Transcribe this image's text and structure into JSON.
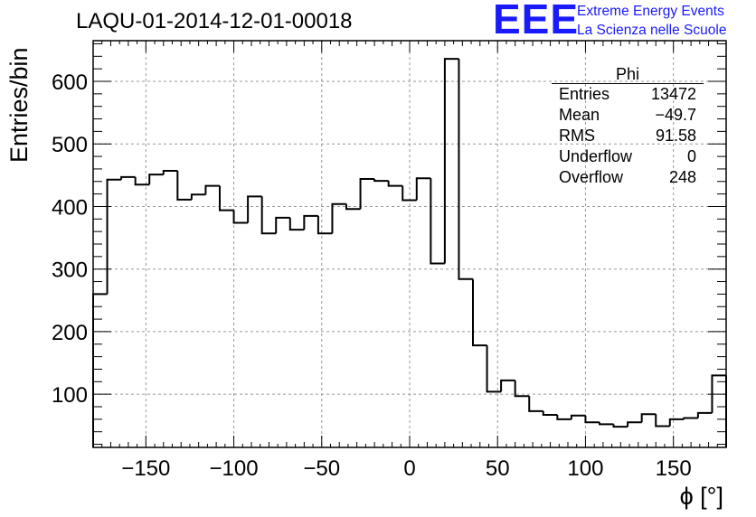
{
  "header": {
    "run_title": "LAQU-01-2014-12-01-00018",
    "logo_text": "EEE",
    "logo_line1": "Extreme Energy Events",
    "logo_line2": "La Scienza nelle Scuole",
    "logo_color": "#1a1aff"
  },
  "stats_box": {
    "title": "Phi",
    "rows": [
      {
        "label": "Entries",
        "value": "13472"
      },
      {
        "label": "Mean",
        "value": "−49.7"
      },
      {
        "label": "RMS",
        "value": "91.58"
      },
      {
        "label": "Underflow",
        "value": "0"
      },
      {
        "label": "Overflow",
        "value": "248"
      }
    ]
  },
  "chart_data": {
    "type": "bar",
    "style": "step-histogram",
    "title": "LAQU-01-2014-12-01-00018",
    "xlabel": "ϕ [°]",
    "ylabel": "Entries/bin",
    "xlim": [
      -180,
      180
    ],
    "ylim": [
      15,
      665
    ],
    "bin_width": 8,
    "xticks": [
      -150,
      -100,
      -50,
      0,
      50,
      100,
      150
    ],
    "xtick_labels": [
      "−150",
      "−100",
      "−50",
      "0",
      "50",
      "100",
      "150"
    ],
    "yticks": [
      100,
      200,
      300,
      400,
      500,
      600
    ],
    "ytick_labels": [
      "100",
      "200",
      "300",
      "400",
      "500",
      "600"
    ],
    "grid": true,
    "legend": "top-right stats box",
    "bins": [
      {
        "x": [
          -180,
          -172
        ],
        "y": 260
      },
      {
        "x": [
          -172,
          -164
        ],
        "y": 443
      },
      {
        "x": [
          -164,
          -156
        ],
        "y": 447
      },
      {
        "x": [
          -156,
          -148
        ],
        "y": 435
      },
      {
        "x": [
          -148,
          -140
        ],
        "y": 451
      },
      {
        "x": [
          -140,
          -132
        ],
        "y": 457
      },
      {
        "x": [
          -132,
          -124
        ],
        "y": 411
      },
      {
        "x": [
          -124,
          -116
        ],
        "y": 419
      },
      {
        "x": [
          -116,
          -108
        ],
        "y": 433
      },
      {
        "x": [
          -108,
          -100
        ],
        "y": 394
      },
      {
        "x": [
          -100,
          -92
        ],
        "y": 374
      },
      {
        "x": [
          -92,
          -84
        ],
        "y": 416
      },
      {
        "x": [
          -84,
          -76
        ],
        "y": 357
      },
      {
        "x": [
          -76,
          -68
        ],
        "y": 382
      },
      {
        "x": [
          -68,
          -60
        ],
        "y": 363
      },
      {
        "x": [
          -60,
          -52
        ],
        "y": 385
      },
      {
        "x": [
          -52,
          -44
        ],
        "y": 357
      },
      {
        "x": [
          -44,
          -36
        ],
        "y": 404
      },
      {
        "x": [
          -36,
          -28
        ],
        "y": 396
      },
      {
        "x": [
          -28,
          -20
        ],
        "y": 444
      },
      {
        "x": [
          -20,
          -12
        ],
        "y": 441
      },
      {
        "x": [
          -12,
          -4
        ],
        "y": 433
      },
      {
        "x": [
          -4,
          4
        ],
        "y": 410
      },
      {
        "x": [
          4,
          12
        ],
        "y": 445
      },
      {
        "x": [
          12,
          20
        ],
        "y": 309
      },
      {
        "x": [
          20,
          28
        ],
        "y": 636
      },
      {
        "x": [
          28,
          36
        ],
        "y": 284
      },
      {
        "x": [
          36,
          44
        ],
        "y": 178
      },
      {
        "x": [
          44,
          52
        ],
        "y": 104
      },
      {
        "x": [
          52,
          60
        ],
        "y": 122
      },
      {
        "x": [
          60,
          68
        ],
        "y": 97
      },
      {
        "x": [
          68,
          76
        ],
        "y": 73
      },
      {
        "x": [
          76,
          84
        ],
        "y": 67
      },
      {
        "x": [
          84,
          92
        ],
        "y": 60
      },
      {
        "x": [
          92,
          100
        ],
        "y": 66
      },
      {
        "x": [
          100,
          108
        ],
        "y": 55
      },
      {
        "x": [
          108,
          116
        ],
        "y": 52
      },
      {
        "x": [
          116,
          124
        ],
        "y": 48
      },
      {
        "x": [
          124,
          132
        ],
        "y": 55
      },
      {
        "x": [
          132,
          140
        ],
        "y": 68
      },
      {
        "x": [
          140,
          148
        ],
        "y": 49
      },
      {
        "x": [
          148,
          156
        ],
        "y": 60
      },
      {
        "x": [
          156,
          164
        ],
        "y": 62
      },
      {
        "x": [
          164,
          172
        ],
        "y": 70
      },
      {
        "x": [
          172,
          180
        ],
        "y": 130
      }
    ]
  }
}
